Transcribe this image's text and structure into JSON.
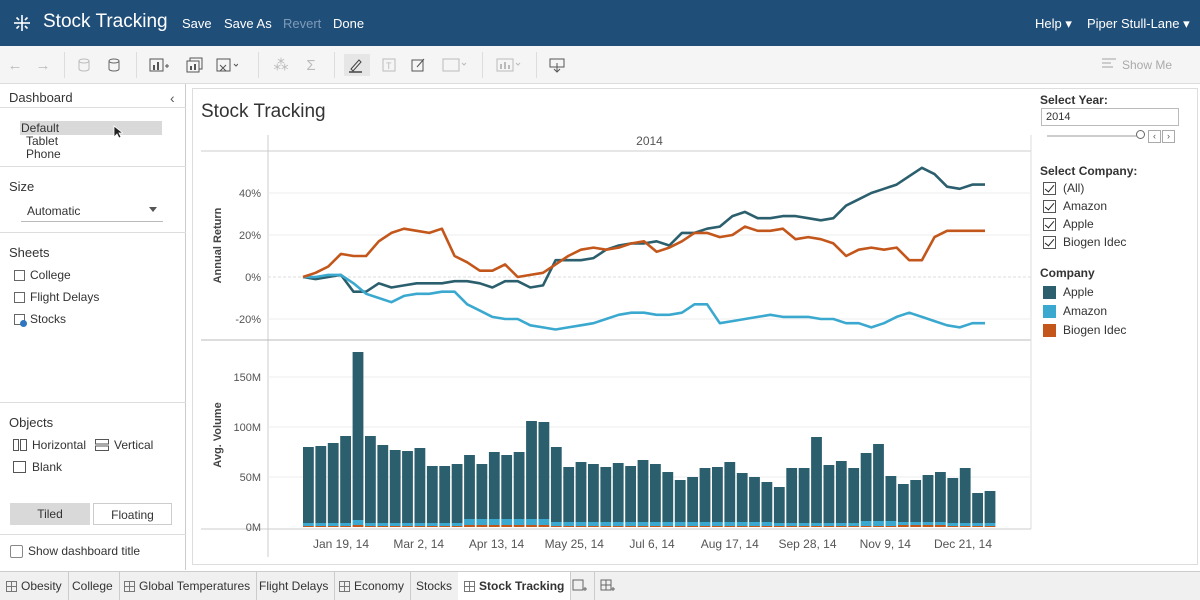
{
  "topbar": {
    "app_title": "Stock Tracking",
    "menu": [
      "Save",
      "Save As",
      "Revert",
      "Done"
    ],
    "help": "Help ▾",
    "user": "Piper Stull-Lane ▾"
  },
  "toolbar": {
    "show_me": "Show Me"
  },
  "left_panel": {
    "dashboard_label": "Dashboard",
    "devices": [
      "Default",
      "Tablet",
      "Phone"
    ],
    "size_label": "Size",
    "size_value": "Automatic",
    "sheets_label": "Sheets",
    "sheets": [
      "College",
      "Flight Delays",
      "Stocks"
    ],
    "objects_label": "Objects",
    "objects": [
      "Horizontal",
      "Vertical",
      "Blank"
    ],
    "tiled": "Tiled",
    "floating": "Floating",
    "show_title": "Show dashboard title"
  },
  "dashboard": {
    "title": "Stock Tracking",
    "select_year_label": "Select Year:",
    "year_value": "2014",
    "select_company_label": "Select Company:",
    "companies": [
      "(All)",
      "Amazon",
      "Apple",
      "Biogen Idec"
    ],
    "legend_label": "Company",
    "legend": [
      {
        "name": "Apple",
        "color": "#2b5f6e"
      },
      {
        "name": "Amazon",
        "color": "#3ba9cf"
      },
      {
        "name": "Biogen Idec",
        "color": "#c3561a"
      }
    ]
  },
  "chart_data": [
    {
      "type": "line",
      "title": "2014",
      "ylabel": "Annual Return",
      "ylim": [
        -30,
        60
      ],
      "yticks": [
        "40%",
        "20%",
        "0%",
        "-20%"
      ],
      "ytick_values": [
        40,
        20,
        0,
        -20
      ],
      "series": [
        {
          "name": "Apple",
          "color": "#2b5f6e",
          "values": [
            0,
            -1,
            0,
            1,
            -7,
            -7,
            -3,
            -5,
            -4,
            -3,
            -3,
            -3,
            -2,
            -2,
            -3,
            -5,
            -2,
            -2,
            -5,
            -4,
            8,
            8,
            8,
            9,
            13,
            15,
            16,
            16,
            17,
            15,
            21,
            21,
            23,
            24,
            29,
            31,
            28,
            28,
            29,
            29,
            28,
            27,
            28,
            34,
            37,
            40,
            42,
            44,
            48,
            52,
            49,
            43,
            42,
            44,
            44
          ]
        },
        {
          "name": "Amazon",
          "color": "#3ba9cf",
          "values": [
            0,
            0,
            1,
            1,
            -3,
            -8,
            -10,
            -12,
            -9,
            -8,
            -8,
            -7,
            -7,
            -13,
            -16,
            -19,
            -20,
            -20,
            -23,
            -24,
            -25,
            -24,
            -23,
            -22,
            -20,
            -18,
            -17,
            -17,
            -18,
            -18,
            -17,
            -13,
            -13,
            -22,
            -21,
            -20,
            -19,
            -18,
            -19,
            -19,
            -19,
            -20,
            -20,
            -22,
            -22,
            -24,
            -22,
            -19,
            -17,
            -19,
            -21,
            -23,
            -24,
            -22,
            -22
          ]
        },
        {
          "name": "Biogen Idec",
          "color": "#c3561a",
          "values": [
            0,
            2,
            5,
            11,
            10,
            10,
            17,
            21,
            23,
            22,
            21,
            23,
            10,
            7,
            3,
            3,
            6,
            0,
            1,
            2,
            6,
            10,
            13,
            14,
            13,
            14,
            16,
            17,
            12,
            14,
            17,
            21,
            21,
            19,
            20,
            24,
            22,
            22,
            23,
            18,
            19,
            18,
            16,
            10,
            13,
            14,
            13,
            14,
            8,
            8,
            19,
            22,
            22,
            22,
            22
          ]
        }
      ]
    },
    {
      "type": "bar",
      "ylabel": "Avg. Volume",
      "ylim": [
        0,
        180
      ],
      "yticks": [
        "150M",
        "100M",
        "50M",
        "0M"
      ],
      "ytick_values": [
        150,
        100,
        50,
        0
      ],
      "xticks": [
        "Jan 19, 14",
        "Mar 2, 14",
        "Apr 13, 14",
        "May 25, 14",
        "Jul 6, 14",
        "Aug 17, 14",
        "Sep 28, 14",
        "Nov 9, 14",
        "Dec 21, 14"
      ],
      "series": [
        {
          "name": "Apple",
          "color": "#2b5f6e",
          "values": [
            76,
            77,
            80,
            87,
            168,
            87,
            78,
            73,
            72,
            75,
            57,
            57,
            59,
            64,
            55,
            67,
            64,
            67,
            98,
            97,
            75,
            55,
            60,
            58,
            55,
            59,
            56,
            62,
            58,
            50,
            42,
            45,
            54,
            55,
            60,
            49,
            45,
            40,
            36,
            55,
            55,
            86,
            58,
            62,
            55,
            68,
            77,
            45,
            38,
            42,
            47,
            50,
            45,
            55,
            30,
            32
          ]
        },
        {
          "name": "Amazon",
          "color": "#3ba9cf",
          "values": [
            3,
            3,
            3,
            3,
            5,
            3,
            3,
            3,
            3,
            3,
            3,
            3,
            3,
            6,
            6,
            6,
            6,
            6,
            6,
            6,
            4,
            4,
            4,
            4,
            4,
            4,
            4,
            4,
            4,
            4,
            4,
            4,
            4,
            4,
            4,
            4,
            4,
            4,
            3,
            3,
            3,
            3,
            3,
            3,
            3,
            5,
            5,
            5,
            3,
            3,
            3,
            3,
            3,
            3,
            3,
            3
          ]
        },
        {
          "name": "Biogen Idec",
          "color": "#c3561a",
          "values": [
            1,
            1,
            1,
            1,
            2,
            1,
            1,
            1,
            1,
            1,
            1,
            1,
            1,
            2,
            2,
            2,
            2,
            2,
            2,
            2,
            1,
            1,
            1,
            1,
            1,
            1,
            1,
            1,
            1,
            1,
            1,
            1,
            1,
            1,
            1,
            1,
            1,
            1,
            1,
            1,
            1,
            1,
            1,
            1,
            1,
            1,
            1,
            1,
            2,
            2,
            2,
            2,
            1,
            1,
            1,
            1
          ]
        }
      ]
    }
  ],
  "tabs": [
    "Obesity",
    "College",
    "Global Temperatures",
    "Flight Delays",
    "Economy",
    "Stocks",
    "Stock Tracking"
  ]
}
